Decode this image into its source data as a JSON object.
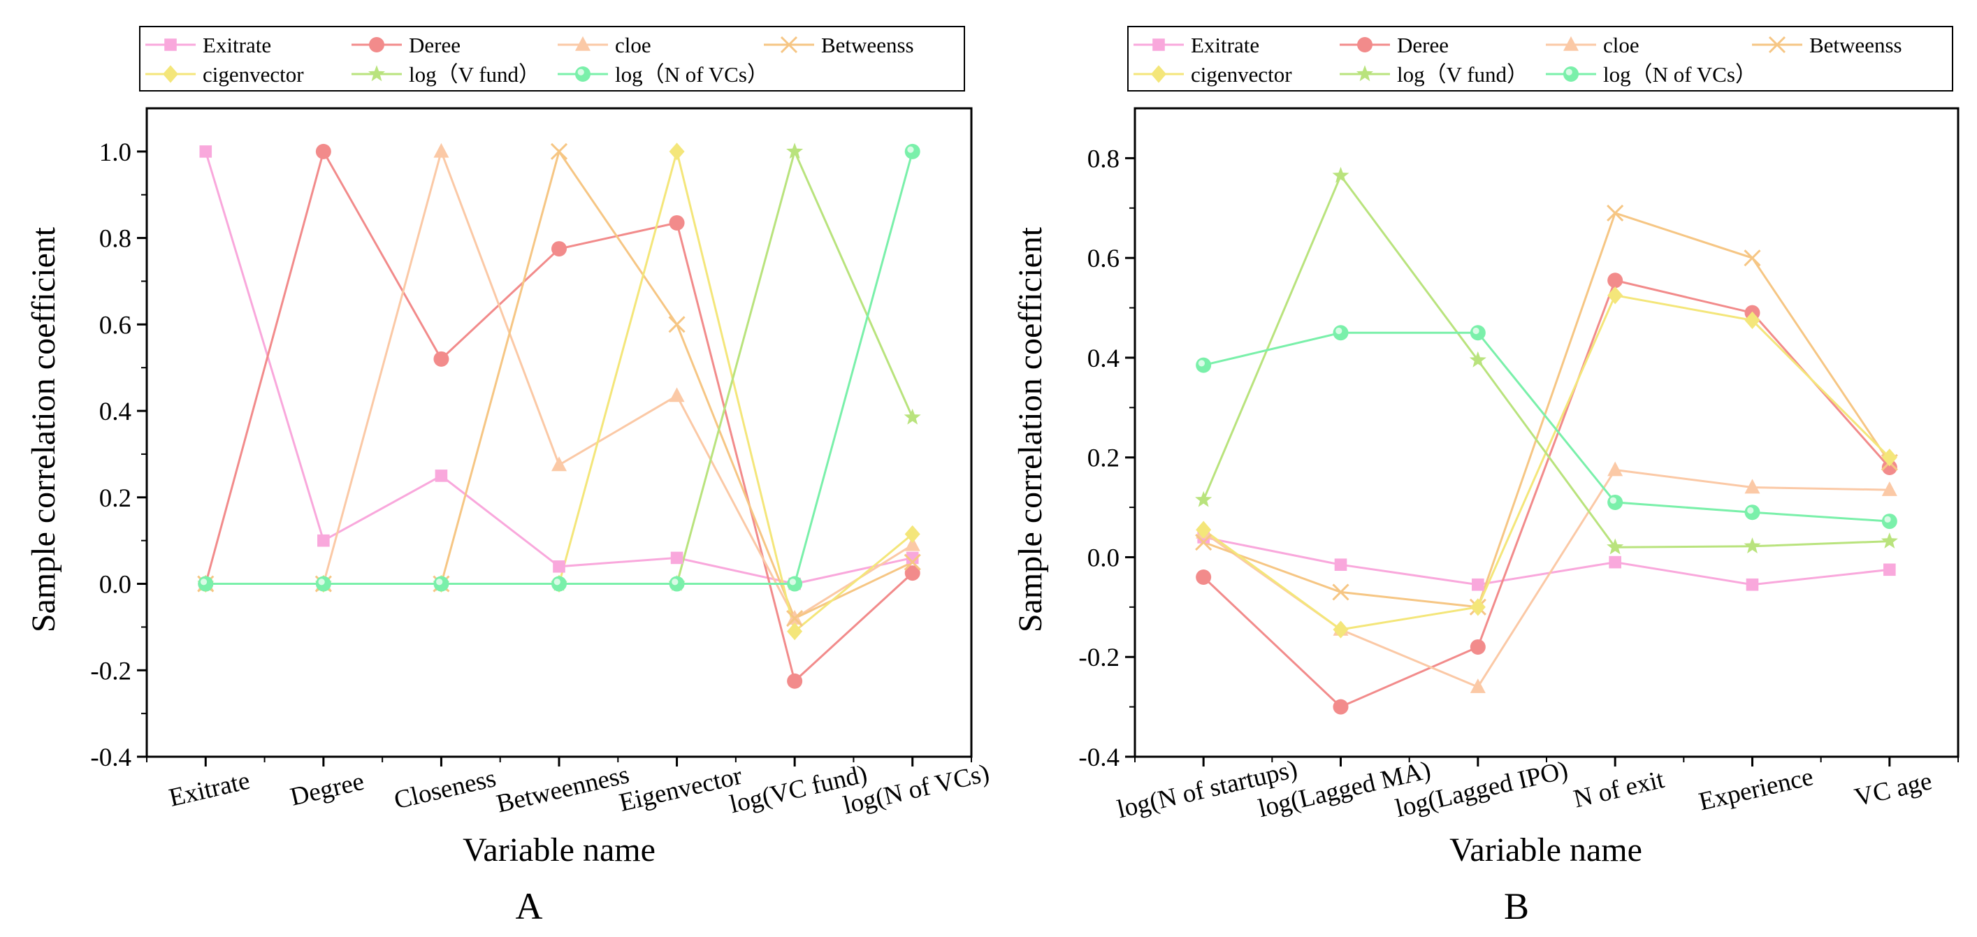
{
  "figure": {
    "panel_labels": [
      "A",
      "B"
    ]
  },
  "legend": {
    "entries": [
      {
        "name": "Exitrate",
        "color": "#f9a8dc",
        "marker": "square"
      },
      {
        "name": "Deree",
        "color": "#f28b8b",
        "marker": "circle"
      },
      {
        "name": "cloe",
        "color": "#fbc9a6",
        "marker": "triangle"
      },
      {
        "name": "Betweenss",
        "color": "#f6c684",
        "marker": "cross"
      },
      {
        "name": "cigenvector",
        "color": "#f4e67a",
        "marker": "diamond"
      },
      {
        "name": "log（V fund）",
        "color": "#b9e37d",
        "marker": "star"
      },
      {
        "name": "log（N of VCs）",
        "color": "#7af0aa",
        "marker": "circle-dot"
      }
    ]
  },
  "chart_data": [
    {
      "type": "line",
      "panel": "A",
      "xlabel": "Variable name",
      "ylabel": "Sample correlation coefficient",
      "ylim": [
        -0.4,
        1.1
      ],
      "yticks": [
        "-0.4",
        "-0.2",
        "0.0",
        "0.2",
        "0.4",
        "0.6",
        "0.8",
        "1.0"
      ],
      "categories": [
        "Exitrate",
        "Degree",
        "Closeness",
        "Betweenness",
        "Eigenvector",
        "log(VC fund)",
        "log(N of VCs)"
      ],
      "series": [
        {
          "name": "Exitrate",
          "values": [
            1.0,
            0.1,
            0.25,
            0.04,
            0.06,
            0.0,
            0.06
          ]
        },
        {
          "name": "Deree",
          "values": [
            0.0,
            1.0,
            0.52,
            0.775,
            0.835,
            -0.225,
            0.025
          ]
        },
        {
          "name": "cloe",
          "values": [
            0.0,
            0.0,
            1.0,
            0.275,
            0.435,
            -0.08,
            0.09
          ]
        },
        {
          "name": "Betweenss",
          "values": [
            0.0,
            0.0,
            0.0,
            1.0,
            0.6,
            -0.08,
            0.05
          ]
        },
        {
          "name": "cigenvector",
          "values": [
            0.0,
            0.0,
            0.0,
            0.0,
            1.0,
            -0.11,
            0.115
          ]
        },
        {
          "name": "log（V fund）",
          "values": [
            0.0,
            0.0,
            0.0,
            0.0,
            0.0,
            1.0,
            0.385
          ]
        },
        {
          "name": "log（N of VCs）",
          "values": [
            0.0,
            0.0,
            0.0,
            0.0,
            0.0,
            0.0,
            1.0
          ]
        }
      ]
    },
    {
      "type": "line",
      "panel": "B",
      "xlabel": "Variable name",
      "ylabel": "Sample correlation coefficient",
      "ylim": [
        -0.4,
        0.9
      ],
      "yticks": [
        "-0.4",
        "-0.2",
        "0.0",
        "0.2",
        "0.4",
        "0.6",
        "0.8"
      ],
      "categories": [
        "log(N of startups)",
        "log(Lagged MA)",
        "log(Lagged IPO)",
        "N of exit",
        "Experience",
        "VC age"
      ],
      "series": [
        {
          "name": "Exitrate",
          "values": [
            0.04,
            -0.015,
            -0.055,
            -0.01,
            -0.055,
            -0.025
          ]
        },
        {
          "name": "Deree",
          "values": [
            -0.04,
            -0.3,
            -0.18,
            0.555,
            0.49,
            0.18
          ]
        },
        {
          "name": "cloe",
          "values": [
            0.05,
            -0.145,
            -0.26,
            0.175,
            0.14,
            0.135
          ]
        },
        {
          "name": "Betweenss",
          "values": [
            0.03,
            -0.07,
            -0.1,
            0.69,
            0.6,
            0.19
          ]
        },
        {
          "name": "cigenvector",
          "values": [
            0.055,
            -0.145,
            -0.1,
            0.525,
            0.475,
            0.2
          ]
        },
        {
          "name": "log（V fund）",
          "values": [
            0.115,
            0.765,
            0.395,
            0.02,
            0.022,
            0.032
          ]
        },
        {
          "name": "log（N of VCs）",
          "values": [
            0.385,
            0.45,
            0.45,
            0.11,
            0.09,
            0.072
          ]
        }
      ]
    }
  ]
}
